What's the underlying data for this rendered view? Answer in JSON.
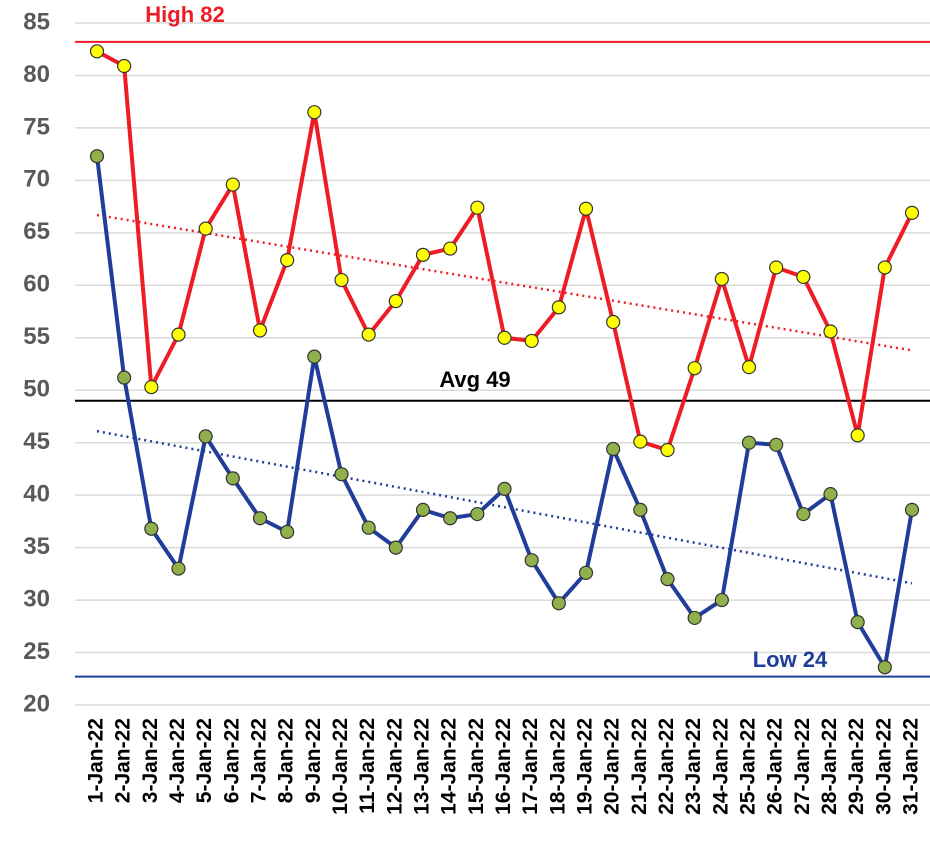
{
  "chart_data": {
    "type": "line",
    "categories": [
      "1-Jan-22",
      "2-Jan-22",
      "3-Jan-22",
      "4-Jan-22",
      "5-Jan-22",
      "6-Jan-22",
      "7-Jan-22",
      "8-Jan-22",
      "9-Jan-22",
      "10-Jan-22",
      "11-Jan-22",
      "12-Jan-22",
      "13-Jan-22",
      "14-Jan-22",
      "15-Jan-22",
      "16-Jan-22",
      "17-Jan-22",
      "18-Jan-22",
      "19-Jan-22",
      "20-Jan-22",
      "21-Jan-22",
      "22-Jan-22",
      "23-Jan-22",
      "24-Jan-22",
      "25-Jan-22",
      "26-Jan-22",
      "27-Jan-22",
      "28-Jan-22",
      "29-Jan-22",
      "30-Jan-22",
      "31-Jan-22"
    ],
    "series": [
      {
        "color": "#ee1c25",
        "marker_color": "#ffff00",
        "values": [
          82.3,
          80.9,
          50.3,
          55.3,
          65.4,
          69.6,
          55.7,
          62.4,
          76.5,
          60.5,
          55.3,
          58.5,
          62.9,
          63.5,
          67.4,
          55.0,
          54.7,
          57.9,
          67.3,
          56.5,
          45.1,
          44.3,
          52.1,
          60.6,
          52.2,
          61.7,
          60.8,
          55.6,
          45.7,
          61.7,
          66.9
        ],
        "trendline": [
          66.7,
          53.8
        ]
      },
      {
        "color": "#1f3d99",
        "marker_color": "#8fb04a",
        "values": [
          72.3,
          51.2,
          36.8,
          33.0,
          45.6,
          41.6,
          37.8,
          36.5,
          53.2,
          42.0,
          36.9,
          35.0,
          38.6,
          37.8,
          38.2,
          40.6,
          33.8,
          29.7,
          32.6,
          44.4,
          38.6,
          32.0,
          28.3,
          30.0,
          45.0,
          44.8,
          38.2,
          40.1,
          27.9,
          23.6,
          38.6
        ],
        "trendline": [
          46.1,
          31.6
        ]
      }
    ],
    "reference_lines": [
      {
        "text": "High 82",
        "value": 83.2,
        "color": "#ee1c25"
      },
      {
        "text": "Avg 49",
        "value": 49.0,
        "color": "#000000"
      },
      {
        "text": "Low 24",
        "value": 22.7,
        "color": "#1f3d99"
      }
    ],
    "ylim": [
      20,
      85
    ],
    "yticks": [
      20,
      25,
      30,
      35,
      40,
      45,
      50,
      55,
      60,
      65,
      70,
      75,
      80,
      85
    ],
    "grid": true
  }
}
